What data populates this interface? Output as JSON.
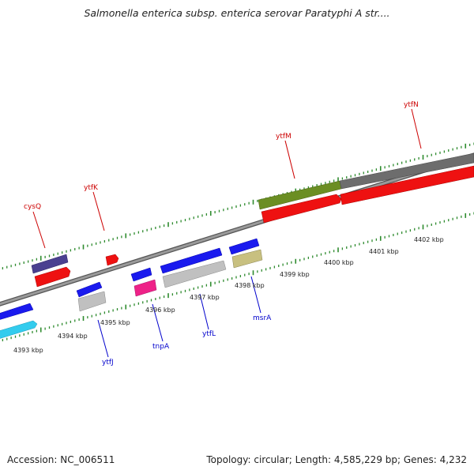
{
  "title": "Salmonella enterica subsp. enterica serovar Paratyphi A str....",
  "footer": {
    "accession": "Accession: NC_006511",
    "topology": "Topology: circular; Length: 4,585,229 bp; Genes: 4,232"
  },
  "colors": {
    "backbone": "#8a8a8a",
    "ticks": "#2e8b2e",
    "label_top": "#cc0000",
    "label_bottom": "#0000cc"
  },
  "kbp_labels": [
    "4393 kbp",
    "4394 kbp",
    "4395 kbp",
    "4396 kbp",
    "4397 kbp",
    "4398 kbp",
    "4399 kbp",
    "4400 kbp",
    "4401 kbp",
    "4402 kbp"
  ],
  "gene_labels_top": [
    "cysQ",
    "ytfK",
    "ytfM",
    "ytfN"
  ],
  "gene_labels_bottom": [
    "ytfJ",
    "tnpA",
    "ytfL",
    "msrA"
  ],
  "gene_colors": {
    "cysQ": "#4a4090",
    "ytfK": "#ee1111",
    "ytfM": "#6b8e23",
    "ytfN": "#6d6d6d",
    "ytfJ": "#1a1aee",
    "tnpA": "#ee2288",
    "ytfL": "#1a1aee",
    "msrA": "#c8c080",
    "cyan": "#33ccee",
    "grey": "#c0c0c0",
    "red": "#ee1111",
    "blue": "#1a1aee"
  }
}
